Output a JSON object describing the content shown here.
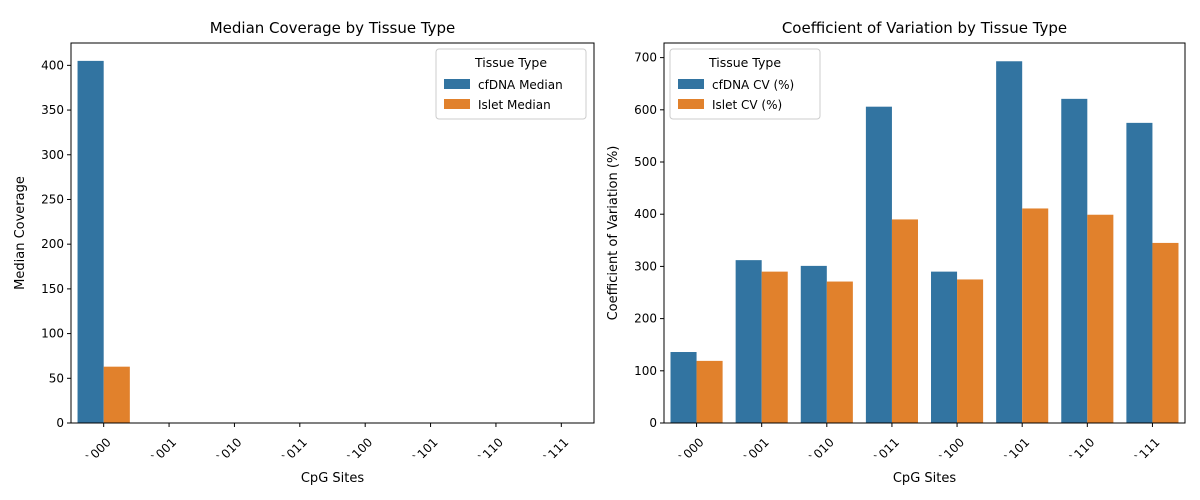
{
  "chart_data": [
    {
      "type": "bar",
      "title": "Median Coverage by Tissue Type",
      "xlabel": "CpG Sites",
      "ylabel": "Median Coverage",
      "categories": [
        "`000",
        "`001",
        "`010",
        "`011",
        "`100",
        "`101",
        "`110",
        "`111"
      ],
      "series": [
        {
          "name": "cfDNA Median",
          "color": "#3274a1",
          "values": [
            405,
            0,
            0,
            0,
            0,
            0,
            0,
            0
          ]
        },
        {
          "name": "Islet Median",
          "color": "#e1812c",
          "values": [
            63,
            0,
            0,
            0,
            0,
            0,
            0,
            0
          ]
        }
      ],
      "ylim": [
        0,
        425
      ],
      "yticks": [
        0,
        50,
        100,
        150,
        200,
        250,
        300,
        350,
        400
      ],
      "legend": {
        "title": "Tissue Type",
        "placement": "upper-right"
      },
      "grid": false
    },
    {
      "type": "bar",
      "title": "Coefficient of Variation by Tissue Type",
      "xlabel": "CpG Sites",
      "ylabel": "Coefficient of Variation (%)",
      "categories": [
        "`000",
        "`001",
        "`010",
        "`011",
        "`100",
        "`101",
        "`110",
        "`111"
      ],
      "series": [
        {
          "name": "cfDNA CV (%)",
          "color": "#3274a1",
          "values": [
            136,
            312,
            301,
            606,
            290,
            693,
            621,
            575
          ]
        },
        {
          "name": "Islet CV (%)",
          "color": "#e1812c",
          "values": [
            119,
            290,
            271,
            390,
            275,
            411,
            399,
            345
          ]
        }
      ],
      "ylim": [
        0,
        728
      ],
      "yticks": [
        0,
        100,
        200,
        300,
        400,
        500,
        600,
        700
      ],
      "legend": {
        "title": "Tissue Type",
        "placement": "upper-left"
      },
      "grid": false
    }
  ]
}
